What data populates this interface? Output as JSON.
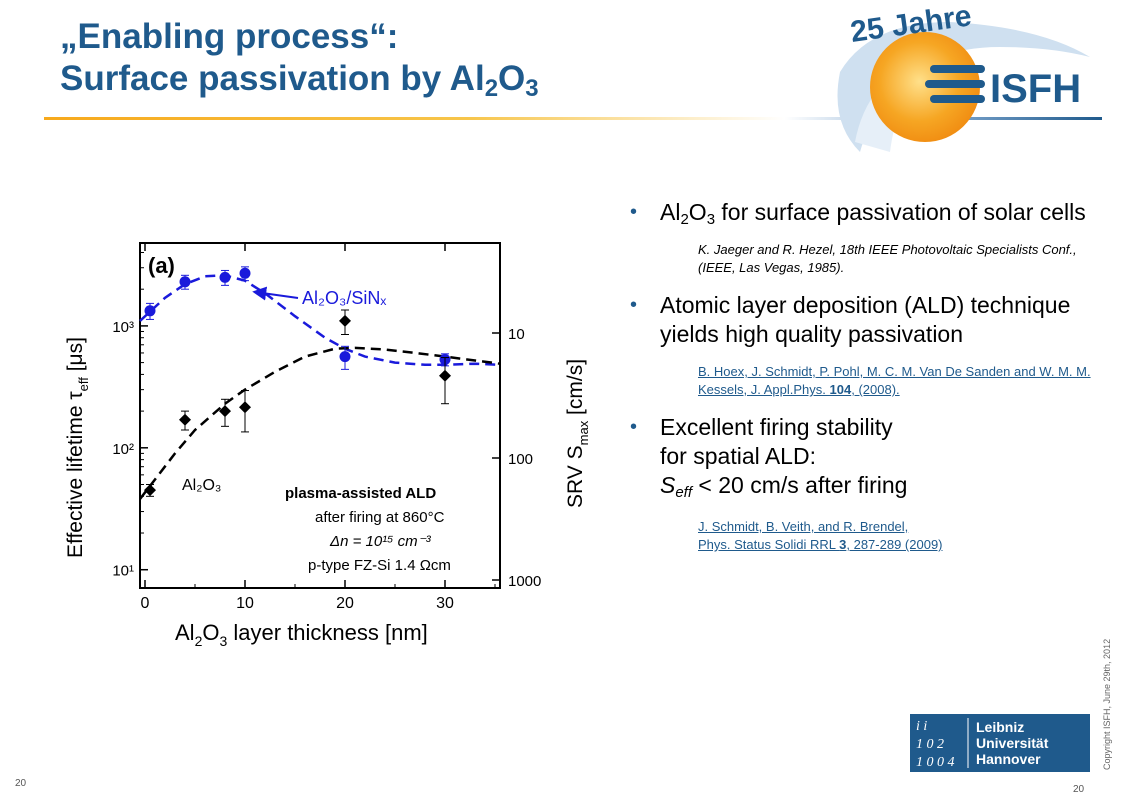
{
  "title": {
    "line1": "„Enabling process“:",
    "line2_prefix": "Surface passivation by Al",
    "line2_sub1": "2",
    "line2_o": "O",
    "line2_sub2": "3"
  },
  "logo": {
    "banner": "25 Jahre",
    "name": "ISFH"
  },
  "bullets": [
    {
      "pre": "Al",
      "sub1": "2",
      "mid": "O",
      "sub2": "3",
      "text": " for surface passivation of solar cells"
    },
    {
      "text": "Atomic layer deposition (ALD) technique yields high quality passivation"
    },
    {
      "line1": "Excellent firing stability",
      "line2": "for spatial ALD:",
      "s": "S",
      "s_sub": "eff",
      "rest": " < 20 cm/s after firing"
    }
  ],
  "refs": {
    "r1": "K. Jaeger and R. Hezel, 18th IEEE Photovoltaic Specialists Conf., (IEEE, Las Vegas, 1985).",
    "r2_a": "B. Hoex, J. Schmidt, P. Pohl, M. C. M. Van De Sanden and W. M. M. Kessels, J. Appl.Phys. ",
    "r2_b": "104",
    "r2_c": ",  (2008).",
    "r3_line1": "J. Schmidt, B. Veith, and R. Brendel,",
    "r3_line2a": " Phys. Status Solidi RRL ",
    "r3_line2b": "3",
    "r3_line2c": ", 287-289 (2009)"
  },
  "copyright": "Copyright ISFH, June 29th, 2012",
  "page_left": "20",
  "page_right": "20",
  "luh": {
    "line1": "Leibniz",
    "line2": "Universität",
    "line3": "Hannover"
  },
  "chart_data": {
    "type": "scatter",
    "panel_label": "(a)",
    "xlabel_pre": "Al",
    "xlabel_sub1": "2",
    "xlabel_o": "O",
    "xlabel_sub2": "3",
    "xlabel_rest": " layer thickness [nm]",
    "ylabel": "Effective lifetime τ",
    "ylabel_sub": "eff",
    "ylabel_unit": " [μs]",
    "y2label": "SRV S",
    "y2label_sub": "max",
    "y2label_unit": " [cm/s]",
    "x_ticks": [
      "0",
      "10",
      "20",
      "30"
    ],
    "y_ticks": [
      "10¹",
      "10²",
      "10³"
    ],
    "y2_ticks": [
      "10",
      "100",
      "1000"
    ],
    "xlim": [
      -0.5,
      35.5
    ],
    "ylim_log10": [
      0.85,
      3.68
    ],
    "legend_al2o3_sinx": "Al₂O₃/SiNₓ",
    "legend_al2o3": "Al₂O₃",
    "annotation": [
      "plasma-assisted ALD",
      "after firing at 860°C",
      "Δn = 10¹⁵ cm⁻³",
      "p-type FZ-Si 1.4 Ωcm"
    ],
    "series": [
      {
        "name": "Al₂O₃/SiNₓ",
        "color": "#1a1adb",
        "marker": "circle",
        "x": [
          0.5,
          4,
          8,
          10,
          20,
          30
        ],
        "y": [
          1330,
          2300,
          2500,
          2700,
          560,
          530
        ],
        "err": [
          200,
          300,
          350,
          350,
          120,
          60
        ]
      },
      {
        "name": "Al₂O₃",
        "color": "#000000",
        "marker": "diamond",
        "x": [
          0.5,
          4,
          8,
          10,
          20,
          30
        ],
        "y": [
          45,
          170,
          200,
          215,
          1100,
          390
        ],
        "err": [
          5,
          30,
          50,
          80,
          250,
          160
        ]
      }
    ],
    "curves": [
      {
        "style": "blue-dashed",
        "x": [
          -0.5,
          2,
          4,
          6,
          8,
          10,
          12,
          15,
          18,
          20,
          22,
          25,
          28,
          30,
          33,
          35.5
        ],
        "y": [
          1100,
          1700,
          2200,
          2550,
          2600,
          2350,
          1850,
          1200,
          800,
          650,
          560,
          500,
          480,
          480,
          490,
          480
        ]
      },
      {
        "style": "black-dashed",
        "x": [
          -0.5,
          1,
          3,
          5,
          8,
          10,
          13,
          16,
          19,
          21,
          24,
          27,
          30,
          33,
          35.5
        ],
        "y": [
          38,
          55,
          90,
          140,
          230,
          300,
          420,
          560,
          650,
          660,
          640,
          600,
          560,
          520,
          490
        ]
      }
    ]
  }
}
